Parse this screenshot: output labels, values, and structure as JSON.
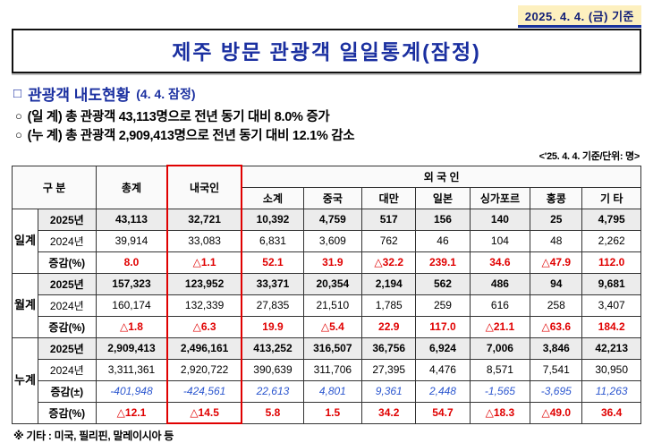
{
  "meta": {
    "date_label": "2025. 4. 4. (금) 기준"
  },
  "title": "제주 방문 관광객 일일통계(잠정)",
  "section": {
    "marker": "□",
    "title": "관광객 내도현황",
    "badge": "(4. 4. 잠정)"
  },
  "bullets": [
    {
      "marker": "○",
      "text": "(일 계) 총 관광객 43,113명으로 전년 동기 대비 8.0% 증가"
    },
    {
      "marker": "○",
      "text": "(누 계) 총 관광객 2,909,413명으로 전년 동기 대비 12.1% 감소"
    }
  ],
  "unit_note": "<'25. 4. 4. 기준/단위: 명>",
  "table": {
    "headers": {
      "category": "구  분",
      "total": "총계",
      "domestic": "내국인",
      "foreign": "외 국 인",
      "foreign_cols": [
        "소계",
        "중국",
        "대만",
        "일본",
        "싱가포르",
        "홍콩",
        "기 타"
      ]
    },
    "groups": [
      {
        "label": "일계",
        "rows": [
          {
            "label": "2025년",
            "style": "b2025",
            "values": [
              "43,113",
              "32,721",
              "10,392",
              "4,759",
              "517",
              "156",
              "140",
              "25",
              "4,795"
            ]
          },
          {
            "label": "2024년",
            "style": "y2024",
            "values": [
              "39,914",
              "33,083",
              "6,831",
              "3,609",
              "762",
              "46",
              "104",
              "48",
              "2,262"
            ]
          },
          {
            "label": "증감(%)",
            "style": "pct",
            "values": [
              "8.0",
              "△1.1",
              "52.1",
              "31.9",
              "△32.2",
              "239.1",
              "34.6",
              "△47.9",
              "112.0"
            ]
          }
        ]
      },
      {
        "label": "월계",
        "rows": [
          {
            "label": "2025년",
            "style": "b2025",
            "values": [
              "157,323",
              "123,952",
              "33,371",
              "20,354",
              "2,194",
              "562",
              "486",
              "94",
              "9,681"
            ]
          },
          {
            "label": "2024년",
            "style": "y2024",
            "values": [
              "160,174",
              "132,339",
              "27,835",
              "21,510",
              "1,785",
              "259",
              "616",
              "258",
              "3,407"
            ]
          },
          {
            "label": "증감(%)",
            "style": "pct",
            "values": [
              "△1.8",
              "△6.3",
              "19.9",
              "△5.4",
              "22.9",
              "117.0",
              "△21.1",
              "△63.6",
              "184.2"
            ]
          }
        ]
      },
      {
        "label": "누계",
        "rows": [
          {
            "label": "2025년",
            "style": "b2025",
            "values": [
              "2,909,413",
              "2,496,161",
              "413,252",
              "316,507",
              "36,756",
              "6,924",
              "7,006",
              "3,846",
              "42,213"
            ]
          },
          {
            "label": "2024년",
            "style": "y2024",
            "values": [
              "3,311,361",
              "2,920,722",
              "390,639",
              "311,706",
              "27,395",
              "4,476",
              "8,571",
              "7,541",
              "30,950"
            ]
          },
          {
            "label": "증감(±)",
            "style": "pm",
            "values": [
              "-401,948",
              "-424,561",
              "22,613",
              "4,801",
              "9,361",
              "2,448",
              "-1,565",
              "-3,695",
              "11,263"
            ]
          },
          {
            "label": "증감(%)",
            "style": "pct",
            "values": [
              "△12.1",
              "△14.5",
              "5.8",
              "1.5",
              "34.2",
              "54.7",
              "△18.3",
              "△49.0",
              "36.4"
            ]
          }
        ]
      }
    ]
  },
  "footnote": "※ 기타 : 미국, 필리핀, 말레이시아 등"
}
